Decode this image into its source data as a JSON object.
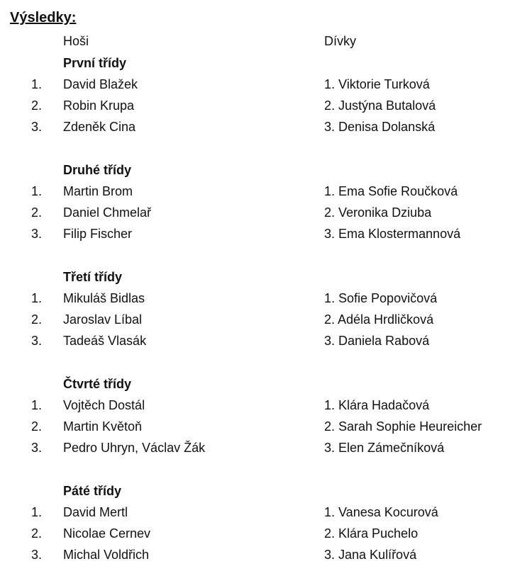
{
  "title": "Výsledky:",
  "columns": {
    "boys": "Hoši",
    "girls": "Dívky"
  },
  "sections": [
    {
      "heading": "První třídy",
      "rows": [
        {
          "num": "1.",
          "boy": "David Blažek",
          "girl": "1. Viktorie Turková"
        },
        {
          "num": "2.",
          "boy": "Robin Krupa",
          "girl": "2. Justýna Butalová"
        },
        {
          "num": "3.",
          "boy": "Zdeněk Cina",
          "girl": "3. Denisa Dolanská"
        }
      ]
    },
    {
      "heading": "Druhé třídy",
      "rows": [
        {
          "num": "1.",
          "boy": "Martin Brom",
          "girl": "1. Ema Sofie Roučková"
        },
        {
          "num": "2.",
          "boy": "Daniel Chmelař",
          "girl": "2. Veronika Dziuba"
        },
        {
          "num": "3.",
          "boy": "Filip Fischer",
          "girl": "3. Ema Klostermannová"
        }
      ]
    },
    {
      "heading": "Třetí třídy",
      "rows": [
        {
          "num": "1.",
          "boy": "Mikuláš Bidlas",
          "girl": "1. Sofie Popovičová"
        },
        {
          "num": "2.",
          "boy": "Jaroslav Líbal",
          "girl": "2. Adéla Hrdličková"
        },
        {
          "num": "3.",
          "boy": "Tadeáš Vlasák",
          "girl": "3. Daniela Rabová"
        }
      ]
    },
    {
      "heading": "Čtvrté třídy",
      "rows": [
        {
          "num": "1.",
          "boy": "Vojtěch Dostál",
          "girl": "1. Klára Hadačová"
        },
        {
          "num": "2.",
          "boy": "Martin Květoň",
          "girl": "2. Sarah Sophie Heureicher"
        },
        {
          "num": "3.",
          "boy": "Pedro Uhryn, Václav Žák",
          "girl": "3. Elen Zámečníková"
        }
      ]
    },
    {
      "heading": "Páté třídy",
      "rows": [
        {
          "num": "1.",
          "boy": "David Mertl",
          "girl": "1. Vanesa Kocurová"
        },
        {
          "num": "2.",
          "boy": "Nicolae Cernev",
          "girl": "2. Klára Puchelo"
        },
        {
          "num": "3.",
          "boy": "Michal Voldřich",
          "girl": "3. Jana Kulířová"
        }
      ]
    }
  ]
}
